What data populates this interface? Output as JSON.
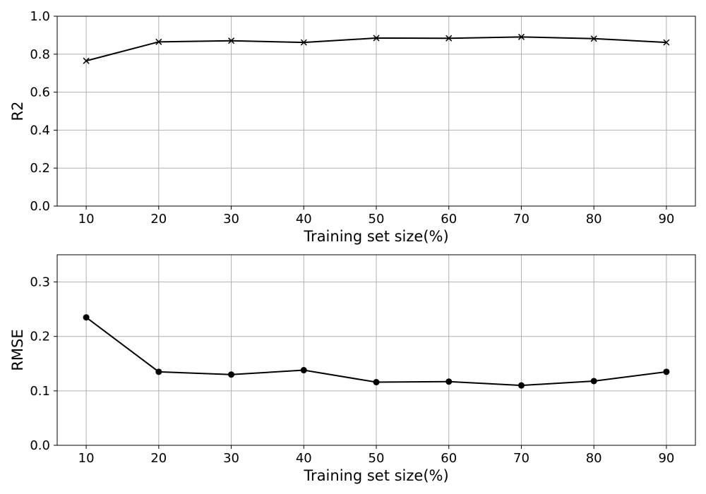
{
  "chart_data": [
    {
      "type": "line",
      "title": "",
      "xlabel": "Training set size(%)",
      "ylabel": "R2",
      "x": [
        10,
        20,
        30,
        40,
        50,
        60,
        70,
        80,
        90
      ],
      "xlim": [
        6,
        94
      ],
      "ylim": [
        0.0,
        1.0
      ],
      "xticks": [
        10,
        20,
        30,
        40,
        50,
        60,
        70,
        80,
        90
      ],
      "xtick_labels": [
        "10",
        "20",
        "30",
        "40",
        "50",
        "60",
        "70",
        "80",
        "90"
      ],
      "yticks": [
        0.0,
        0.2,
        0.4,
        0.6,
        0.8,
        1.0
      ],
      "ytick_labels": [
        "0.0",
        "0.2",
        "0.4",
        "0.6",
        "0.8",
        "1.0"
      ],
      "grid": true,
      "marker": "x",
      "color": "#000000",
      "series": [
        {
          "values": [
            0.765,
            0.865,
            0.871,
            0.862,
            0.885,
            0.884,
            0.891,
            0.882,
            0.862
          ]
        }
      ]
    },
    {
      "type": "line",
      "title": "",
      "xlabel": "Training set size(%)",
      "ylabel": "RMSE",
      "x": [
        10,
        20,
        30,
        40,
        50,
        60,
        70,
        80,
        90
      ],
      "xlim": [
        6,
        94
      ],
      "ylim": [
        0.0,
        0.35
      ],
      "xticks": [
        10,
        20,
        30,
        40,
        50,
        60,
        70,
        80,
        90
      ],
      "xtick_labels": [
        "10",
        "20",
        "30",
        "40",
        "50",
        "60",
        "70",
        "80",
        "90"
      ],
      "yticks": [
        0.0,
        0.1,
        0.2,
        0.3
      ],
      "ytick_labels": [
        "0.0",
        "0.1",
        "0.2",
        "0.3"
      ],
      "grid": true,
      "marker": "circle",
      "color": "#000000",
      "series": [
        {
          "values": [
            0.235,
            0.135,
            0.13,
            0.138,
            0.116,
            0.117,
            0.11,
            0.118,
            0.135
          ]
        }
      ]
    }
  ]
}
